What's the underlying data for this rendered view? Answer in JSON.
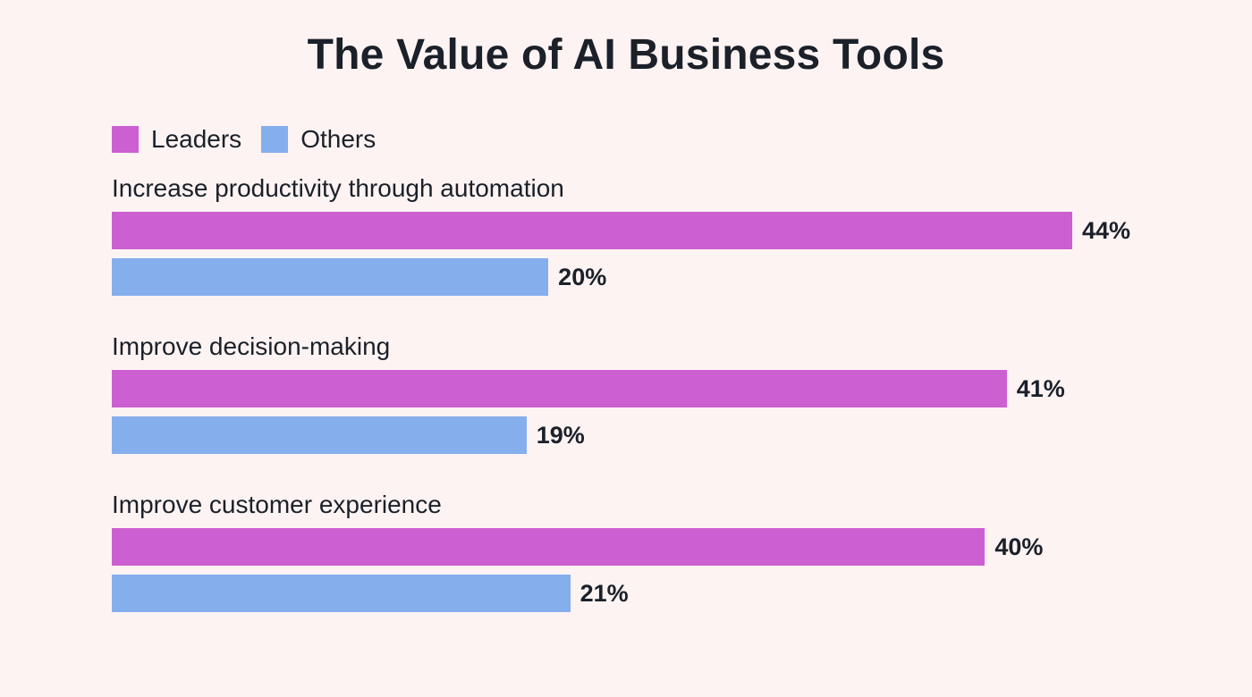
{
  "colors": {
    "background": "#fdf3f3",
    "leaders": "#cc5fd1",
    "others": "#85aeed",
    "text": "#1b2029"
  },
  "chart_data": {
    "type": "bar",
    "orientation": "horizontal",
    "title": "The Value of AI Business Tools",
    "categories": [
      "Increase productivity through automation",
      "Improve decision-making",
      "Improve customer experience"
    ],
    "series": [
      {
        "name": "Leaders",
        "values": [
          44,
          41,
          40
        ],
        "labels": [
          "44%",
          "41%",
          "40%"
        ],
        "color": "#cc5fd1"
      },
      {
        "name": "Others",
        "values": [
          20,
          19,
          21
        ],
        "labels": [
          "20%",
          "19%",
          "21%"
        ],
        "color": "#85aeed"
      }
    ],
    "value_unit": "%",
    "xlim": [
      0,
      44
    ],
    "grid": false,
    "legend": "top-left"
  }
}
